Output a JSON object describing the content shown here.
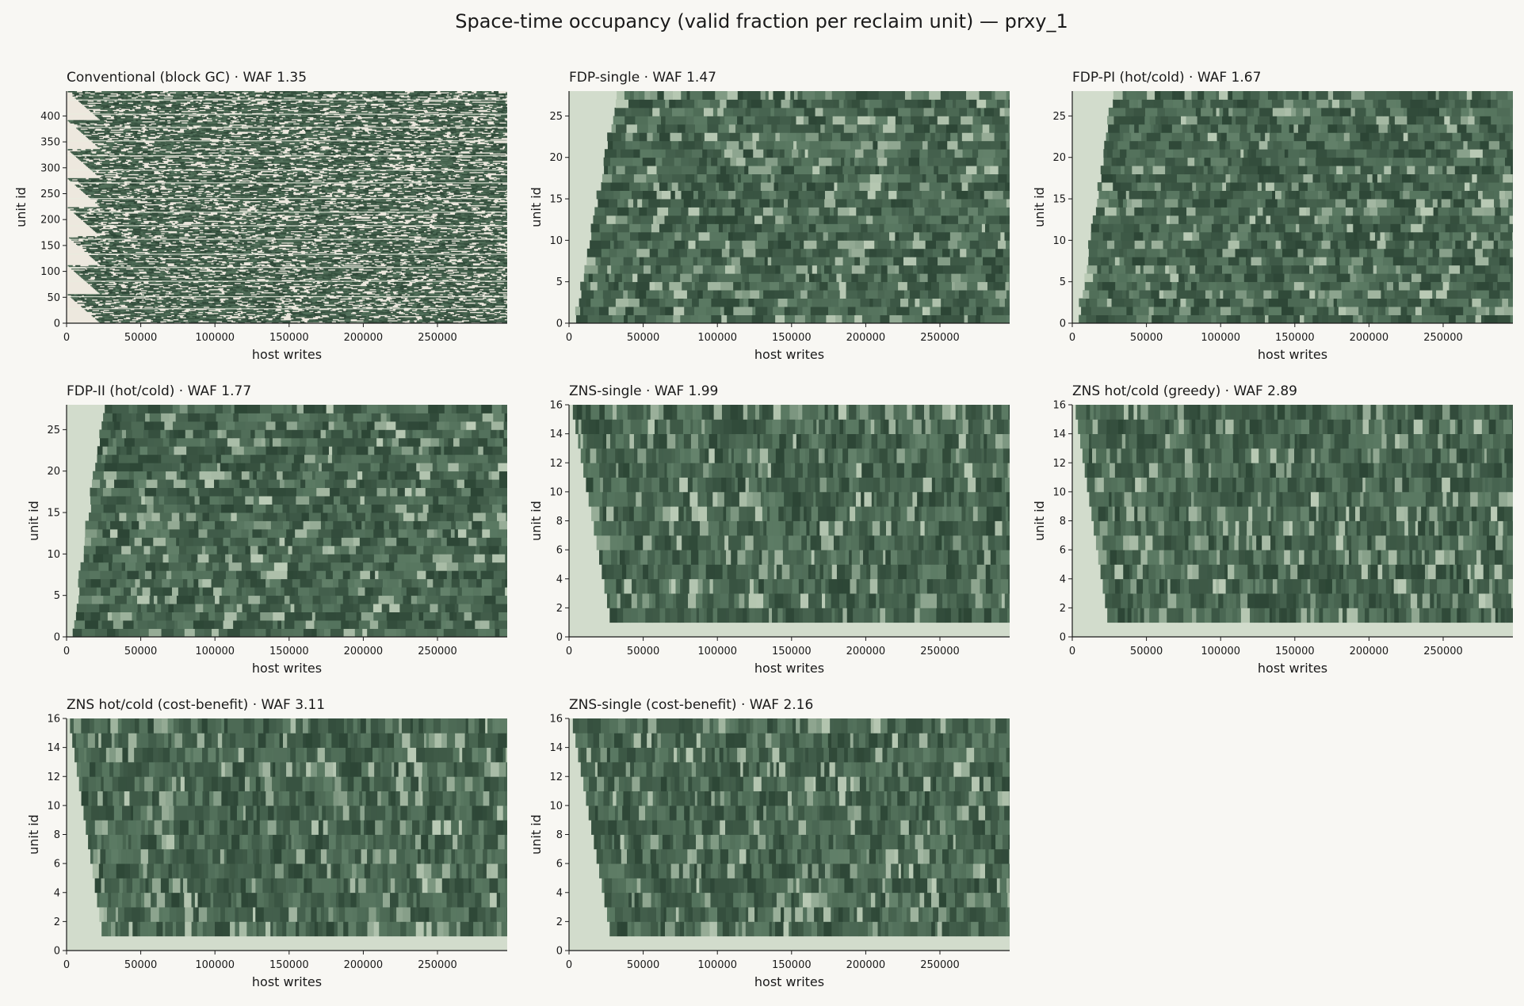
{
  "figure": {
    "title": "Space-time occupancy (valid fraction per reclaim unit) — prxy_1"
  },
  "colors": {
    "background": "#f8f7f3",
    "empty_unit": "#d2dccc",
    "conventional_empty": "#ede8de",
    "valid_dark": "#2c4535",
    "valid_mid": "#5b7a63",
    "valid_light": "#c5d4bf"
  },
  "chart_data": [
    {
      "type": "heatmap",
      "title": "Conventional (block GC) · WAF 1.35",
      "xlabel": "host writes",
      "ylabel": "unit id",
      "xlim": [
        0,
        297000
      ],
      "ylim": [
        0,
        448
      ],
      "xticks": [
        0,
        50000,
        100000,
        150000,
        200000,
        250000
      ],
      "yticks": [
        0,
        50,
        100,
        150,
        200,
        250,
        300,
        350,
        400
      ],
      "waf": 1.35,
      "units": 448,
      "fill_end_writes": 25000
    },
    {
      "type": "heatmap",
      "title": "FDP-single · WAF 1.47",
      "xlabel": "host writes",
      "ylabel": "unit id",
      "xlim": [
        0,
        297000
      ],
      "ylim": [
        0,
        28
      ],
      "xticks": [
        0,
        50000,
        100000,
        150000,
        200000,
        250000
      ],
      "yticks": [
        0,
        5,
        10,
        15,
        20,
        25
      ],
      "waf": 1.47,
      "units": 28,
      "fill_end_writes": 35000
    },
    {
      "type": "heatmap",
      "title": "FDP-PI (hot/cold) · WAF 1.67",
      "xlabel": "host writes",
      "ylabel": "unit id",
      "xlim": [
        0,
        297000
      ],
      "ylim": [
        0,
        28
      ],
      "xticks": [
        0,
        50000,
        100000,
        150000,
        200000,
        250000
      ],
      "yticks": [
        0,
        5,
        10,
        15,
        20,
        25
      ],
      "waf": 1.67,
      "units": 28,
      "fill_end_writes": 30000
    },
    {
      "type": "heatmap",
      "title": "FDP-II (hot/cold) · WAF 1.77",
      "xlabel": "host writes",
      "ylabel": "unit id",
      "xlim": [
        0,
        297000
      ],
      "ylim": [
        0,
        28
      ],
      "xticks": [
        0,
        50000,
        100000,
        150000,
        200000,
        250000
      ],
      "yticks": [
        0,
        5,
        10,
        15,
        20,
        25
      ],
      "waf": 1.77,
      "units": 28,
      "fill_end_writes": 27000
    },
    {
      "type": "heatmap",
      "title": "ZNS-single · WAF 1.99",
      "xlabel": "host writes",
      "ylabel": "unit id",
      "xlim": [
        0,
        297000
      ],
      "ylim": [
        0,
        16
      ],
      "xticks": [
        0,
        50000,
        100000,
        150000,
        200000,
        250000
      ],
      "yticks": [
        0,
        2,
        4,
        6,
        8,
        10,
        12,
        14,
        16
      ],
      "waf": 1.99,
      "units": 16,
      "fill_end_writes": 28000
    },
    {
      "type": "heatmap",
      "title": "ZNS hot/cold (greedy) · WAF 2.89",
      "xlabel": "host writes",
      "ylabel": "unit id",
      "xlim": [
        0,
        297000
      ],
      "ylim": [
        0,
        16
      ],
      "xticks": [
        0,
        50000,
        100000,
        150000,
        200000,
        250000
      ],
      "yticks": [
        0,
        2,
        4,
        6,
        8,
        10,
        12,
        14,
        16
      ],
      "waf": 2.89,
      "units": 16,
      "fill_end_writes": 24000
    },
    {
      "type": "heatmap",
      "title": "ZNS hot/cold (cost-benefit) · WAF 3.11",
      "xlabel": "host writes",
      "ylabel": "unit id",
      "xlim": [
        0,
        297000
      ],
      "ylim": [
        0,
        16
      ],
      "xticks": [
        0,
        50000,
        100000,
        150000,
        200000,
        250000
      ],
      "yticks": [
        0,
        2,
        4,
        6,
        8,
        10,
        12,
        14,
        16
      ],
      "waf": 3.11,
      "units": 16,
      "fill_end_writes": 24000
    },
    {
      "type": "heatmap",
      "title": "ZNS-single (cost-benefit) · WAF 2.16",
      "xlabel": "host writes",
      "ylabel": "unit id",
      "xlim": [
        0,
        297000
      ],
      "ylim": [
        0,
        16
      ],
      "xticks": [
        0,
        50000,
        100000,
        150000,
        200000,
        250000
      ],
      "yticks": [
        0,
        2,
        4,
        6,
        8,
        10,
        12,
        14,
        16
      ],
      "waf": 2.16,
      "units": 16,
      "fill_end_writes": 28000
    }
  ]
}
